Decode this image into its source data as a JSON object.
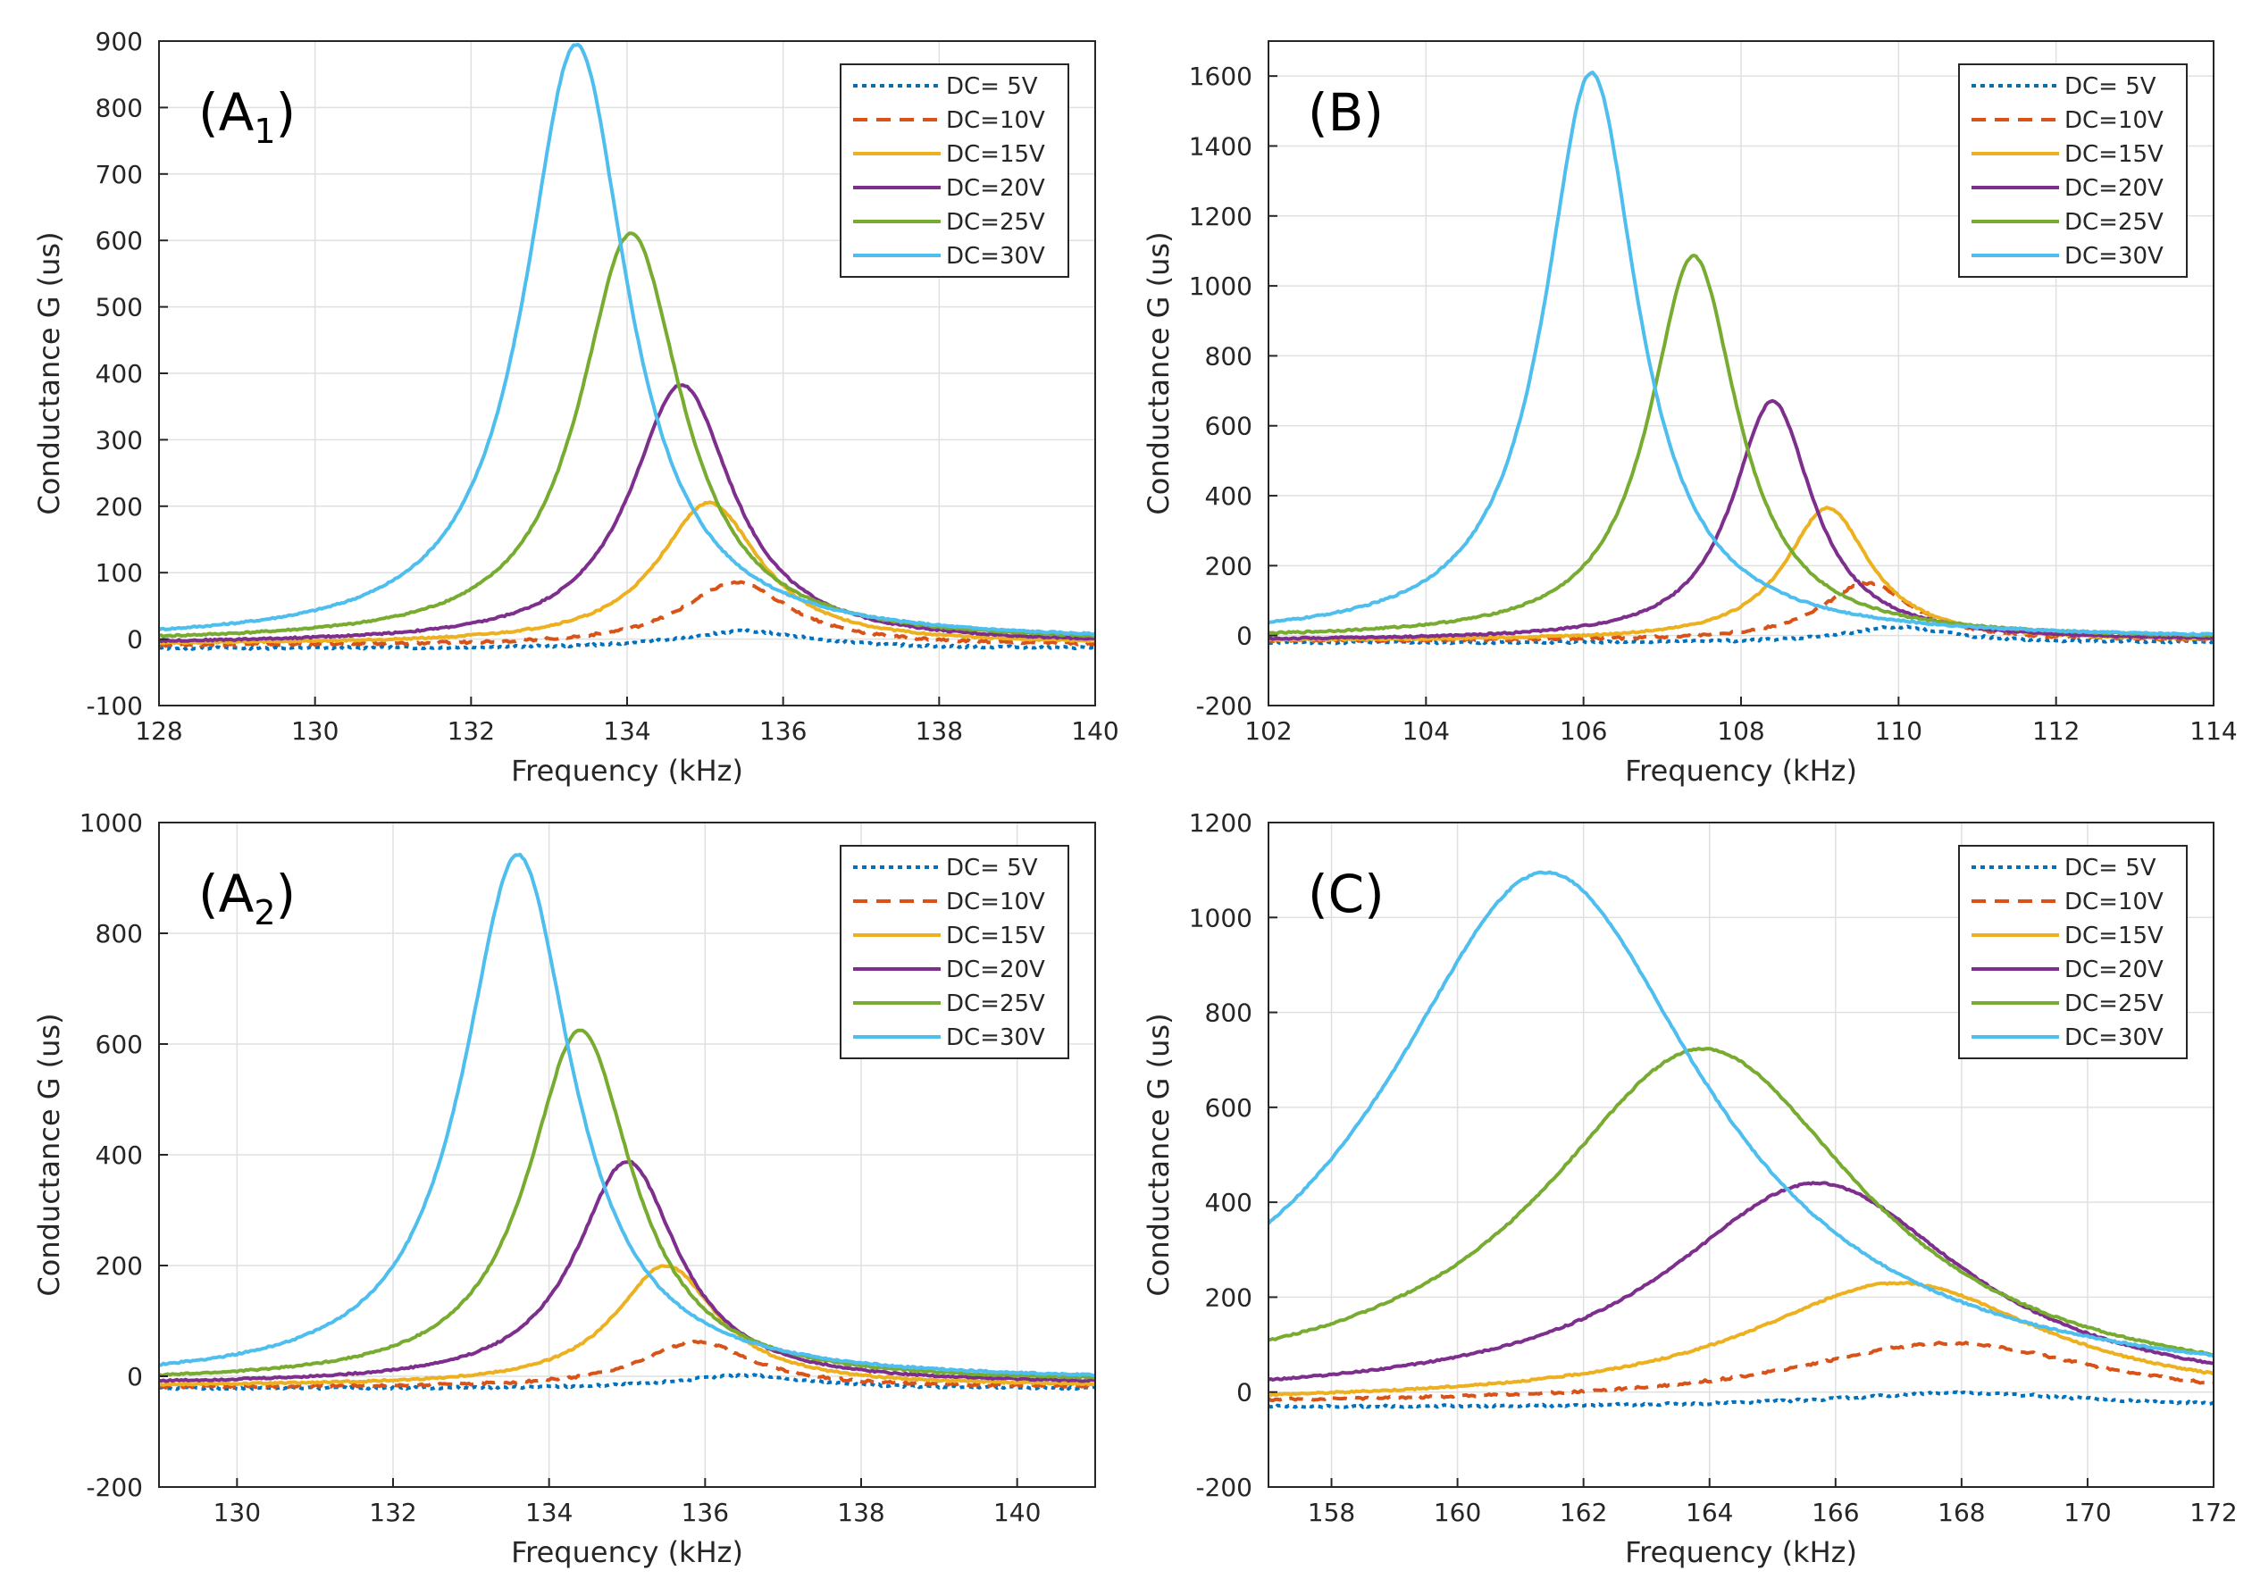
{
  "colors": {
    "dc5": "#0072bd",
    "dc10": "#d95319",
    "dc15": "#edb120",
    "dc20": "#7e2f8e",
    "dc25": "#77ac30",
    "dc30": "#4dbeee",
    "grid": "#e0e0e0",
    "axis": "#262626"
  },
  "chart_data": [
    {
      "id": "A1",
      "type": "line",
      "panel_label": "(A",
      "panel_label_sub": "1",
      "panel_label_end": ")",
      "xlabel": "Frequency (kHz)",
      "ylabel": "Conductance G (us)",
      "xlim": [
        128,
        140
      ],
      "ylim": [
        -100,
        900
      ],
      "xticks": [
        128,
        130,
        132,
        134,
        136,
        138,
        140
      ],
      "yticks": [
        -100,
        0,
        100,
        200,
        300,
        400,
        500,
        600,
        700,
        800,
        900
      ],
      "legend_position": "top-right",
      "series": [
        {
          "name": "DC=  5V",
          "style": "dotted",
          "color": "dc5",
          "peak_f": 135.5,
          "peak_g": 12,
          "width": 1.0,
          "baseline": -14
        },
        {
          "name": "DC=10V",
          "style": "dashed",
          "color": "dc10",
          "peak_f": 135.4,
          "peak_g": 85,
          "width": 0.85,
          "baseline": -10
        },
        {
          "name": "DC=15V",
          "style": "solid",
          "color": "dc15",
          "peak_f": 135.05,
          "peak_g": 205,
          "width": 0.8,
          "baseline": -8
        },
        {
          "name": "DC=20V",
          "style": "solid",
          "color": "dc20",
          "peak_f": 134.7,
          "peak_g": 383,
          "width": 0.8,
          "baseline": -8
        },
        {
          "name": "DC=25V",
          "style": "solid",
          "color": "dc25",
          "peak_f": 134.05,
          "peak_g": 610,
          "width": 0.8,
          "baseline": -6
        },
        {
          "name": "DC=30V",
          "style": "solid",
          "color": "dc30",
          "peak_f": 133.35,
          "peak_g": 895,
          "width": 0.8,
          "baseline": -5
        }
      ]
    },
    {
      "id": "B",
      "type": "line",
      "panel_label": "(B)",
      "panel_label_sub": "",
      "panel_label_end": "",
      "xlabel": "Frequency (kHz)",
      "ylabel": "Conductance G (us)",
      "xlim": [
        102,
        114
      ],
      "ylim": [
        -200,
        1700
      ],
      "xticks": [
        102,
        104,
        106,
        108,
        110,
        112,
        114
      ],
      "yticks": [
        -200,
        0,
        200,
        400,
        600,
        800,
        1000,
        1200,
        1400,
        1600
      ],
      "legend_position": "top-right",
      "series": [
        {
          "name": "DC=  5V",
          "style": "dotted",
          "color": "dc5",
          "peak_f": 110.0,
          "peak_g": 25,
          "width": 0.8,
          "baseline": -20
        },
        {
          "name": "DC=10V",
          "style": "dashed",
          "color": "dc10",
          "peak_f": 109.6,
          "peak_g": 150,
          "width": 0.7,
          "baseline": -15
        },
        {
          "name": "DC=15V",
          "style": "solid",
          "color": "dc15",
          "peak_f": 109.1,
          "peak_g": 365,
          "width": 0.65,
          "baseline": -15
        },
        {
          "name": "DC=20V",
          "style": "solid",
          "color": "dc20",
          "peak_f": 108.4,
          "peak_g": 670,
          "width": 0.62,
          "baseline": -15
        },
        {
          "name": "DC=25V",
          "style": "solid",
          "color": "dc25",
          "peak_f": 107.4,
          "peak_g": 1085,
          "width": 0.68,
          "baseline": -10
        },
        {
          "name": "DC=30V",
          "style": "solid",
          "color": "dc30",
          "peak_f": 106.1,
          "peak_g": 1610,
          "width": 0.72,
          "baseline": -10
        }
      ]
    },
    {
      "id": "A2",
      "type": "line",
      "panel_label": "(A",
      "panel_label_sub": "2",
      "panel_label_end": ")",
      "xlabel": "Frequency (kHz)",
      "ylabel": "Conductance G (us)",
      "xlim": [
        129,
        141
      ],
      "ylim": [
        -200,
        1000
      ],
      "xticks": [
        130,
        132,
        134,
        136,
        138,
        140
      ],
      "yticks": [
        -200,
        0,
        200,
        400,
        600,
        800,
        1000
      ],
      "legend_position": "top-right",
      "series": [
        {
          "name": "DC=  5V",
          "style": "dotted",
          "color": "dc5",
          "peak_f": 136.5,
          "peak_g": 2,
          "width": 1.0,
          "baseline": -22
        },
        {
          "name": "DC=10V",
          "style": "dashed",
          "color": "dc10",
          "peak_f": 135.9,
          "peak_g": 63,
          "width": 0.85,
          "baseline": -20
        },
        {
          "name": "DC=15V",
          "style": "solid",
          "color": "dc15",
          "peak_f": 135.5,
          "peak_g": 200,
          "width": 0.8,
          "baseline": -18
        },
        {
          "name": "DC=20V",
          "style": "solid",
          "color": "dc20",
          "peak_f": 135.0,
          "peak_g": 388,
          "width": 0.8,
          "baseline": -15
        },
        {
          "name": "DC=25V",
          "style": "solid",
          "color": "dc25",
          "peak_f": 134.4,
          "peak_g": 625,
          "width": 0.82,
          "baseline": -12
        },
        {
          "name": "DC=30V",
          "style": "solid",
          "color": "dc30",
          "peak_f": 133.6,
          "peak_g": 942,
          "width": 0.85,
          "baseline": -10
        }
      ]
    },
    {
      "id": "C",
      "type": "line",
      "panel_label": "(C)",
      "panel_label_sub": "",
      "panel_label_end": "",
      "xlabel": "Frequency (kHz)",
      "ylabel": "Conductance G (us)",
      "xlim": [
        157,
        172
      ],
      "ylim": [
        -200,
        1200
      ],
      "xticks": [
        158,
        160,
        162,
        164,
        166,
        168,
        170,
        172
      ],
      "yticks": [
        -200,
        0,
        200,
        400,
        600,
        800,
        1000,
        1200
      ],
      "legend_position": "top-right",
      "series": [
        {
          "name": "DC=  5V",
          "style": "dotted",
          "color": "dc5",
          "peak_f": 168.0,
          "peak_g": -2,
          "width": 2.5,
          "baseline": -32
        },
        {
          "name": "DC=10V",
          "style": "dashed",
          "color": "dc10",
          "peak_f": 167.8,
          "peak_g": 103,
          "width": 3.0,
          "baseline": -25
        },
        {
          "name": "DC=15V",
          "style": "solid",
          "color": "dc15",
          "peak_f": 167.0,
          "peak_g": 230,
          "width": 2.9,
          "baseline": -25
        },
        {
          "name": "DC=20V",
          "style": "solid",
          "color": "dc20",
          "peak_f": 165.7,
          "peak_g": 440,
          "width": 2.9,
          "baseline": -20
        },
        {
          "name": "DC=25V",
          "style": "solid",
          "color": "dc25",
          "peak_f": 163.9,
          "peak_g": 723,
          "width": 3.1,
          "baseline": -15
        },
        {
          "name": "DC=30V",
          "style": "solid",
          "color": "dc30",
          "peak_f": 161.4,
          "peak_g": 1095,
          "width": 3.1,
          "baseline": -10
        }
      ]
    }
  ]
}
